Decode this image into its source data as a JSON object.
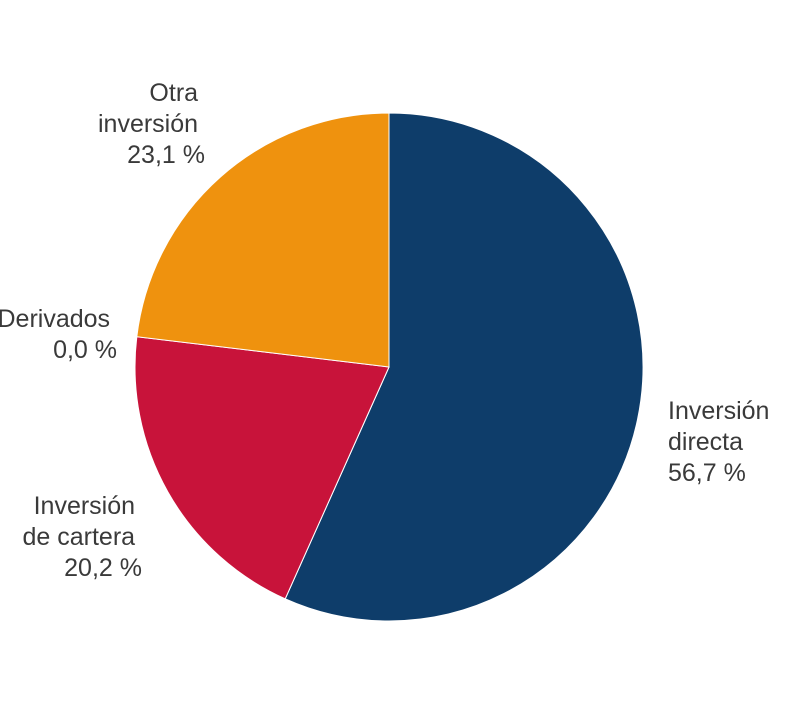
{
  "chart_data": {
    "type": "pie",
    "title": "",
    "start_angle_deg": 0,
    "direction": "clockwise",
    "slices": [
      {
        "label": [
          "Inversión",
          "directa"
        ],
        "value": 56.7,
        "value_text": "56,7 %",
        "color": "#0e3d6a"
      },
      {
        "label": [
          "Derivados"
        ],
        "value": 0.0,
        "value_text": "0,0 %",
        "color": "#5a5a5a"
      },
      {
        "label": [
          "Inversión",
          "de cartera"
        ],
        "value": 20.2,
        "value_text": "20,2 %",
        "color": "#c8133a"
      },
      {
        "label": [
          "Otra",
          "inversión"
        ],
        "value": 23.1,
        "value_text": "23,1 %",
        "color": "#ef920e"
      }
    ]
  }
}
